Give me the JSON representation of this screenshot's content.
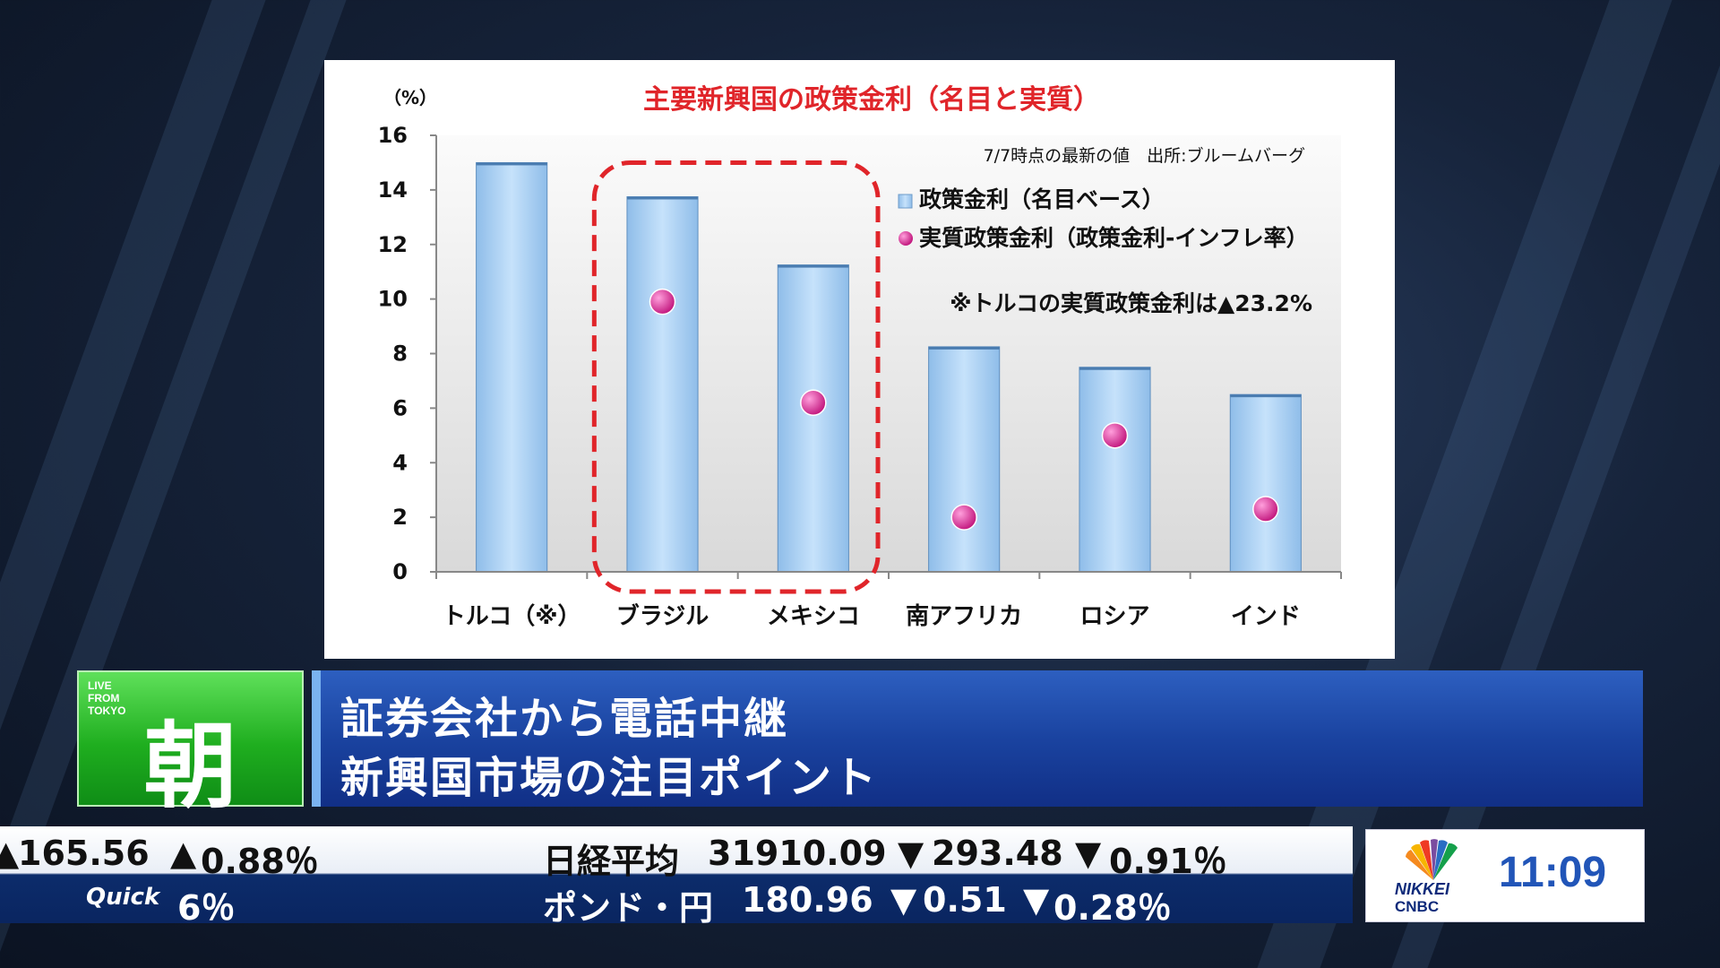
{
  "chart_data": {
    "type": "bar",
    "title": "主要新興国の政策金利（名目と実質）",
    "y_unit_label": "（%）",
    "ylim": [
      0,
      16
    ],
    "yticks": [
      "0",
      "2",
      "4",
      "6",
      "8",
      "10",
      "12",
      "14",
      "16"
    ],
    "grid": false,
    "categories": [
      "トルコ（※）",
      "ブラジル",
      "メキシコ",
      "南アフリカ",
      "ロシア",
      "インド"
    ],
    "series": [
      {
        "name": "政策金利（名目ベース）",
        "kind": "bar",
        "color": "#a9d0f5",
        "values": [
          15.0,
          13.75,
          11.25,
          8.25,
          7.5,
          6.5
        ]
      },
      {
        "name": "実質政策金利（政策金利-インフレ率）",
        "kind": "marker",
        "color": "#e0259a",
        "values": [
          null,
          9.9,
          6.2,
          2.0,
          5.0,
          2.3
        ]
      }
    ],
    "legend_position": "top-right",
    "source_note": "7/7時点の最新の値　出所:ブルームバーグ",
    "annotation": "※トルコの実質政策金利は▲23.2%",
    "highlight": "ブラジル・メキシコ"
  },
  "program": {
    "live_label": "LIVE\nFROM\nTOKYO",
    "name_char": "朝"
  },
  "headline": {
    "line1": "証券会社から電話中継",
    "line2": "新興国市場の注目ポイント"
  },
  "ticker": {
    "top_left_value": "165.56",
    "top_left_pct": "0.88％",
    "nikkei_label": "日経平均",
    "nikkei_value": "31910.09",
    "nikkei_change": "293.48",
    "nikkei_pct": "0.91％",
    "quick_label": "Quick",
    "quick_value": "6％",
    "gbp_label": "ポンド・円",
    "gbp_value": "180.96",
    "gbp_change": "0.51",
    "gbp_pct": "0.28％",
    "up_arrow": "▲",
    "down_arrow": "▼"
  },
  "brand": {
    "nikkei": "NIKKEI",
    "cnbc": "CNBC",
    "clock": "11:09"
  }
}
